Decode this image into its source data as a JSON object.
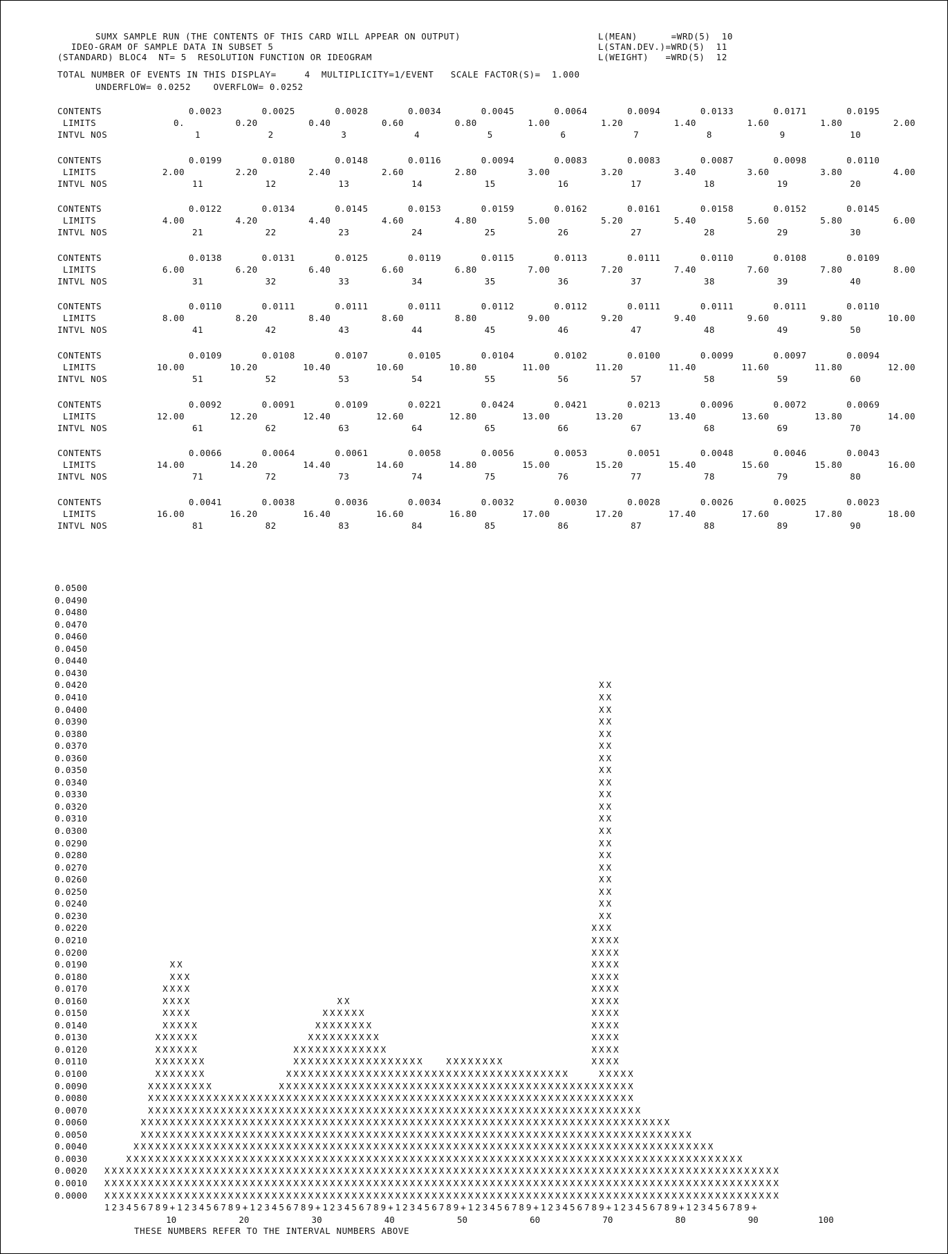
{
  "header": {
    "line1": "SUMX SAMPLE RUN (THE CONTENTS OF THIS CARD WILL APPEAR ON OUTPUT)",
    "line1_right": "L(MEAN)      =WRD(5)  10",
    "line2": "IDEO-GRAM OF SAMPLE DATA IN SUBSET 5",
    "line2_right": "L(STAN.DEV.)=WRD(5)  11",
    "line3": "(STANDARD) BLOC4  NT= 5  RESOLUTION FUNCTION OR IDEOGRAM",
    "line3_right": "L(WEIGHT)   =WRD(5)  12",
    "line4": "TOTAL NUMBER OF EVENTS IN THIS DISPLAY=     4  MULTIPLICITY=1/EVENT   SCALE FACTOR(S)=  1.000",
    "line5": "UNDERFLOW= 0.0252    OVERFLOW= 0.0252"
  },
  "labels": {
    "contents": "CONTENTS",
    "limits": "LIMITS",
    "intvl": "INTVL NOS"
  },
  "blocks": [
    {
      "contents": [
        "0.0023",
        "0.0025",
        "0.0028",
        "0.0034",
        "0.0045",
        "0.0064",
        "0.0094",
        "0.0133",
        "0.0171",
        "0.0195"
      ],
      "limits": [
        "0.",
        "0.20",
        "0.40",
        "0.60",
        "0.80",
        "1.00",
        "1.20",
        "1.40",
        "1.60",
        "1.80",
        "2.00"
      ],
      "intervals": [
        "1",
        "2",
        "3",
        "4",
        "5",
        "6",
        "7",
        "8",
        "9",
        "10"
      ]
    },
    {
      "contents": [
        "0.0199",
        "0.0180",
        "0.0148",
        "0.0116",
        "0.0094",
        "0.0083",
        "0.0083",
        "0.0087",
        "0.0098",
        "0.0110"
      ],
      "limits": [
        "2.00",
        "2.20",
        "2.40",
        "2.60",
        "2.80",
        "3.00",
        "3.20",
        "3.40",
        "3.60",
        "3.80",
        "4.00"
      ],
      "intervals": [
        "11",
        "12",
        "13",
        "14",
        "15",
        "16",
        "17",
        "18",
        "19",
        "20"
      ]
    },
    {
      "contents": [
        "0.0122",
        "0.0134",
        "0.0145",
        "0.0153",
        "0.0159",
        "0.0162",
        "0.0161",
        "0.0158",
        "0.0152",
        "0.0145"
      ],
      "limits": [
        "4.00",
        "4.20",
        "4.40",
        "4.60",
        "4.80",
        "5.00",
        "5.20",
        "5.40",
        "5.60",
        "5.80",
        "6.00"
      ],
      "intervals": [
        "21",
        "22",
        "23",
        "24",
        "25",
        "26",
        "27",
        "28",
        "29",
        "30"
      ]
    },
    {
      "contents": [
        "0.0138",
        "0.0131",
        "0.0125",
        "0.0119",
        "0.0115",
        "0.0113",
        "0.0111",
        "0.0110",
        "0.0108",
        "0.0109"
      ],
      "limits": [
        "6.00",
        "6.20",
        "6.40",
        "6.60",
        "6.80",
        "7.00",
        "7.20",
        "7.40",
        "7.60",
        "7.80",
        "8.00"
      ],
      "intervals": [
        "31",
        "32",
        "33",
        "34",
        "35",
        "36",
        "37",
        "38",
        "39",
        "40"
      ]
    },
    {
      "contents": [
        "0.0110",
        "0.0111",
        "0.0111",
        "0.0111",
        "0.0112",
        "0.0112",
        "0.0111",
        "0.0111",
        "0.0111",
        "0.0110"
      ],
      "limits": [
        "8.00",
        "8.20",
        "8.40",
        "8.60",
        "8.80",
        "9.00",
        "9.20",
        "9.40",
        "9.60",
        "9.80",
        "10.00"
      ],
      "intervals": [
        "41",
        "42",
        "43",
        "44",
        "45",
        "46",
        "47",
        "48",
        "49",
        "50"
      ]
    },
    {
      "contents": [
        "0.0109",
        "0.0108",
        "0.0107",
        "0.0105",
        "0.0104",
        "0.0102",
        "0.0100",
        "0.0099",
        "0.0097",
        "0.0094"
      ],
      "limits": [
        "10.00",
        "10.20",
        "10.40",
        "10.60",
        "10.80",
        "11.00",
        "11.20",
        "11.40",
        "11.60",
        "11.80",
        "12.00"
      ],
      "intervals": [
        "51",
        "52",
        "53",
        "54",
        "55",
        "56",
        "57",
        "58",
        "59",
        "60"
      ]
    },
    {
      "contents": [
        "0.0092",
        "0.0091",
        "0.0109",
        "0.0221",
        "0.0424",
        "0.0421",
        "0.0213",
        "0.0096",
        "0.0072",
        "0.0069"
      ],
      "limits": [
        "12.00",
        "12.20",
        "12.40",
        "12.60",
        "12.80",
        "13.00",
        "13.20",
        "13.40",
        "13.60",
        "13.80",
        "14.00"
      ],
      "intervals": [
        "61",
        "62",
        "63",
        "64",
        "65",
        "66",
        "67",
        "68",
        "69",
        "70"
      ]
    },
    {
      "contents": [
        "0.0066",
        "0.0064",
        "0.0061",
        "0.0058",
        "0.0056",
        "0.0053",
        "0.0051",
        "0.0048",
        "0.0046",
        "0.0043"
      ],
      "limits": [
        "14.00",
        "14.20",
        "14.40",
        "14.60",
        "14.80",
        "15.00",
        "15.20",
        "15.40",
        "15.60",
        "15.80",
        "16.00"
      ],
      "intervals": [
        "71",
        "72",
        "73",
        "74",
        "75",
        "76",
        "77",
        "78",
        "79",
        "80"
      ]
    },
    {
      "contents": [
        "0.0041",
        "0.0038",
        "0.0036",
        "0.0034",
        "0.0032",
        "0.0030",
        "0.0028",
        "0.0026",
        "0.0025",
        "0.0023"
      ],
      "limits": [
        "16.00",
        "16.20",
        "16.40",
        "16.60",
        "16.80",
        "17.00",
        "17.20",
        "17.40",
        "17.60",
        "17.80",
        "18.00"
      ],
      "intervals": [
        "81",
        "82",
        "83",
        "84",
        "85",
        "86",
        "87",
        "88",
        "89",
        "90"
      ]
    }
  ],
  "histogram": {
    "y_labels": [
      "0.0500",
      "0.0490",
      "0.0480",
      "0.0470",
      "0.0460",
      "0.0450",
      "0.0440",
      "0.0430",
      "0.0420",
      "0.0410",
      "0.0400",
      "0.0390",
      "0.0380",
      "0.0370",
      "0.0360",
      "0.0350",
      "0.0340",
      "0.0330",
      "0.0320",
      "0.0310",
      "0.0300",
      "0.0290",
      "0.0280",
      "0.0270",
      "0.0260",
      "0.0250",
      "0.0240",
      "0.0230",
      "0.0220",
      "0.0210",
      "0.0200",
      "0.0190",
      "0.0180",
      "0.0170",
      "0.0160",
      "0.0150",
      "0.0140",
      "0.0130",
      "0.0120",
      "0.0110",
      "0.0100",
      "0.0090",
      "0.0080",
      "0.0070",
      "0.0060",
      "0.0050",
      "0.0040",
      "0.0030",
      "0.0020",
      "0.0010",
      "0.0000"
    ],
    "rows": [
      "",
      "",
      "",
      "",
      "",
      "",
      "",
      "",
      "                                                                    XX",
      "                                                                    XX",
      "                                                                    XX",
      "                                                                    XX",
      "                                                                    XX",
      "                                                                    XX",
      "                                                                    XX",
      "                                                                    XX",
      "                                                                    XX",
      "                                                                    XX",
      "                                                                    XX",
      "                                                                    XX",
      "                                                                    XX",
      "                                                                    XX",
      "                                                                    XX",
      "                                                                    XX",
      "                                                                    XX",
      "                                                                    XX",
      "                                                                    XX",
      "                                                                    XX",
      "                                                                   XXX",
      "                                                                   XXXX",
      "                                                                   XXXX",
      "         XX                                                        XXXX",
      "         XXX                                                       XXXX",
      "        XXXX                                                       XXXX",
      "        XXXX                    XX                                 XXXX",
      "        XXXX                  XXXXXX                               XXXX",
      "        XXXXX                XXXXXXXX                              XXXX",
      "       XXXXXX               XXXXXXXXXX                             XXXX",
      "       XXXXXX             XXXXXXXXXXXXX                            XXXX",
      "       XXXXXXX            XXXXXXXXXXXXXXXXXX   XXXXXXXX            XXXX",
      "       XXXXXXX           XXXXXXXXXXXXXXXXXXXXXXXXXXXXXXXXXXXXXXX    XXXXX",
      "      XXXXXXXXX         XXXXXXXXXXXXXXXXXXXXXXXXXXXXXXXXXXXXXXXXXXXXXXXXX",
      "      XXXXXXXXXXXXXXXXXXXXXXXXXXXXXXXXXXXXXXXXXXXXXXXXXXXXXXXXXXXXXXXXXXX",
      "      XXXXXXXXXXXXXXXXXXXXXXXXXXXXXXXXXXXXXXXXXXXXXXXXXXXXXXXXXXXXXXXXXXXX",
      "     XXXXXXXXXXXXXXXXXXXXXXXXXXXXXXXXXXXXXXXXXXXXXXXXXXXXXXXXXXXXXXXXXXXXXXXXX",
      "     XXXXXXXXXXXXXXXXXXXXXXXXXXXXXXXXXXXXXXXXXXXXXXXXXXXXXXXXXXXXXXXXXXXXXXXXXXXX",
      "    XXXXXXXXXXXXXXXXXXXXXXXXXXXXXXXXXXXXXXXXXXXXXXXXXXXXXXXXXXXXXXXXXXXXXXXXXXXXXXXX",
      "   XXXXXXXXXXXXXXXXXXXXXXXXXXXXXXXXXXXXXXXXXXXXXXXXXXXXXXXXXXXXXXXXXXXXXXXXXXXXXXXXXXXXX",
      "XXXXXXXXXXXXXXXXXXXXXXXXXXXXXXXXXXXXXXXXXXXXXXXXXXXXXXXXXXXXXXXXXXXXXXXXXXXXXXXXXXXXXXXXXXXXX",
      "XXXXXXXXXXXXXXXXXXXXXXXXXXXXXXXXXXXXXXXXXXXXXXXXXXXXXXXXXXXXXXXXXXXXXXXXXXXXXXXXXXXXXXXXXXXXX",
      "XXXXXXXXXXXXXXXXXXXXXXXXXXXXXXXXXXXXXXXXXXXXXXXXXXXXXXXXXXXXXXXXXXXXXXXXXXXXXXXXXXXXXXXXXXXXX"
    ],
    "scale_row": "123456789+123456789+123456789+123456789+123456789+123456789+123456789+123456789+123456789+",
    "x_ticks": [
      "10",
      "20",
      "30",
      "40",
      "50",
      "60",
      "70",
      "80",
      "90",
      "100"
    ],
    "footer": "THESE NUMBERS REFER TO THE INTERVAL NUMBERS ABOVE"
  }
}
